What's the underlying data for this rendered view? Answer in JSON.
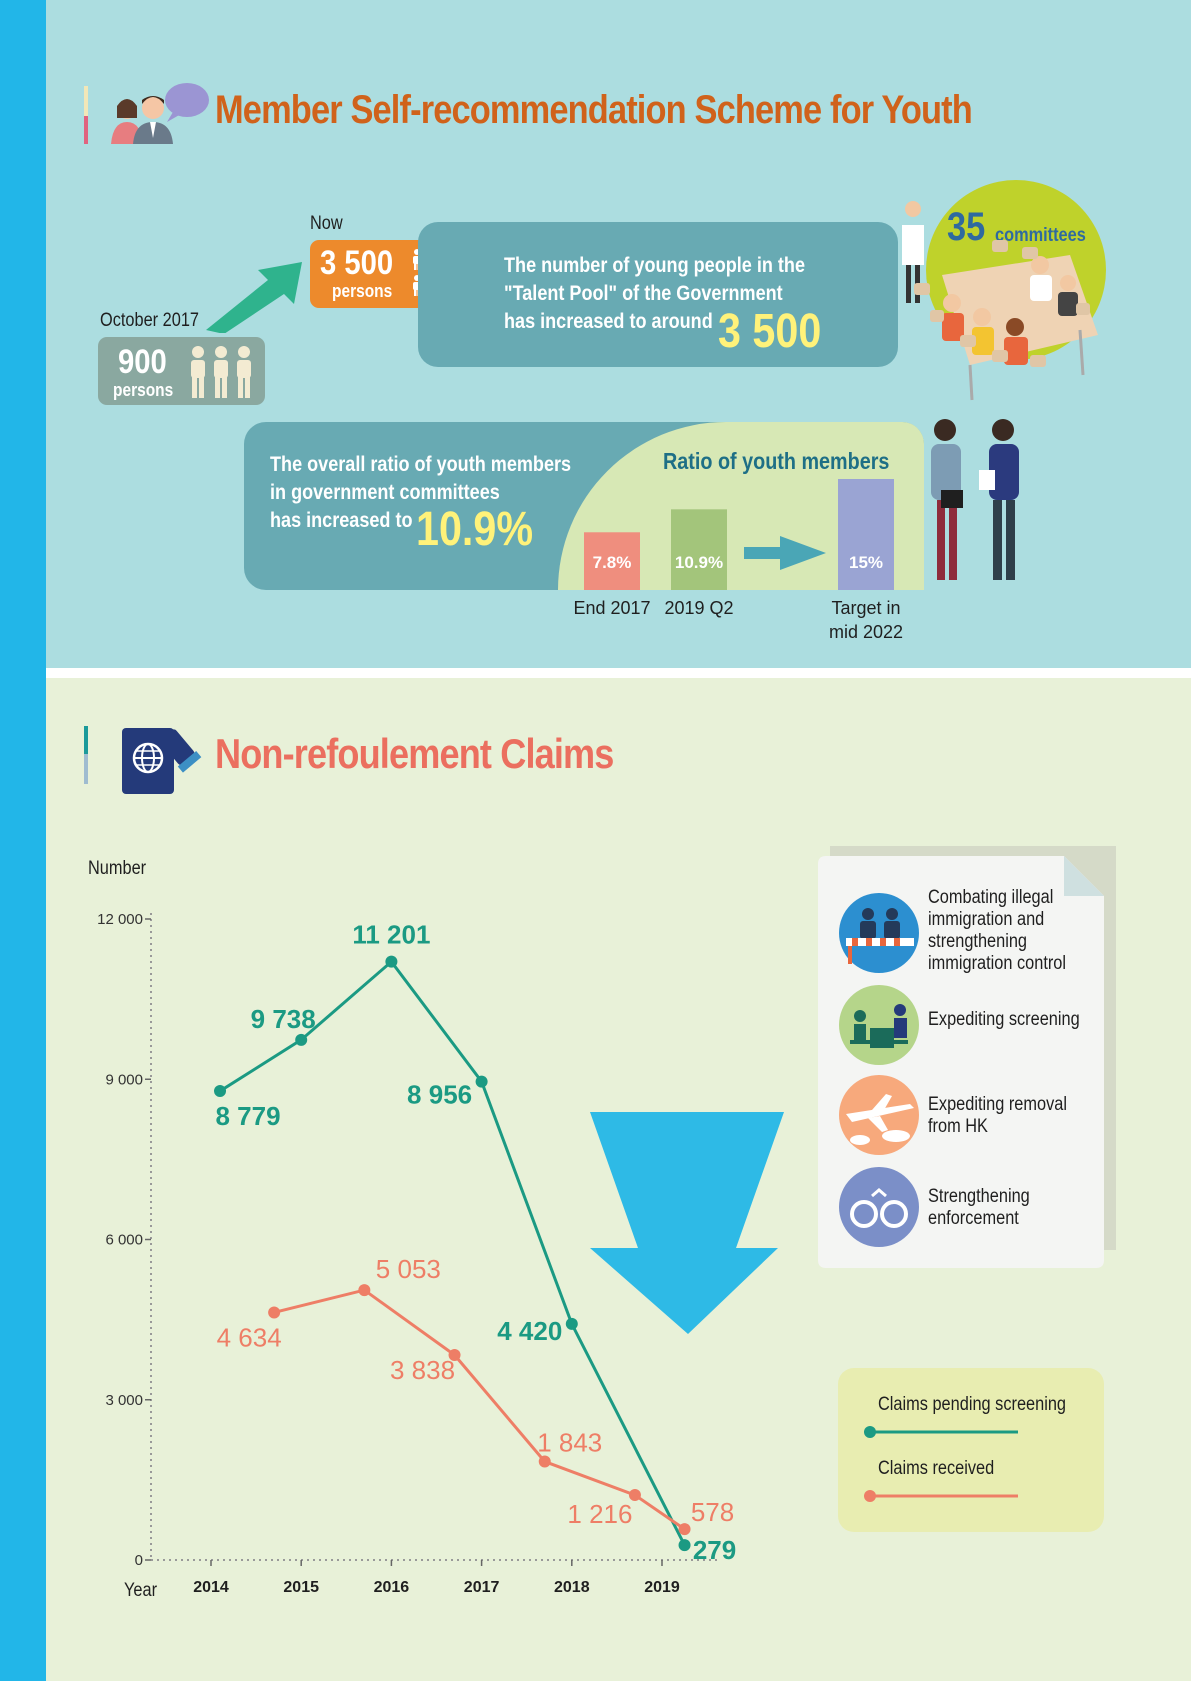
{
  "section1": {
    "title": "Member Self-recommendation Scheme for Youth",
    "now_label": "Now",
    "now_value": "3 500",
    "now_unit": "persons",
    "past_label": "October 2017",
    "past_value": "900",
    "past_unit": "persons",
    "talent_line1": "The number of young people in the",
    "talent_line2": "\"Talent Pool\" of the Government",
    "talent_line3": "has increased to around",
    "talent_value": "3 500",
    "committees_value": "35",
    "committees_label": "committees",
    "ratio_line1": "The overall ratio of youth members",
    "ratio_line2": "in government committees",
    "ratio_line3": "has increased to",
    "ratio_value": "10.9%",
    "ratio_chart_title": "Ratio of youth members"
  },
  "section2": {
    "title": "Non-refoulement Claims",
    "y_axis_title": "Number",
    "x_axis_title": "Year",
    "measures": [
      "Combating illegal immigration and strengthening immigration control",
      "Expediting screening",
      "Expediting removal from HK",
      "Strengthening enforcement"
    ],
    "legend": [
      "Claims pending screening",
      "Claims received"
    ]
  },
  "colors": {
    "pending": "#1b9a83",
    "received": "#ee7e66",
    "arrow": "#2ebae6",
    "bar_2017": "#ef8e7e",
    "bar_2019": "#a3c57b",
    "bar_target": "#9aa4d3"
  },
  "chart_data": [
    {
      "type": "bar",
      "title": "Ratio of youth members",
      "categories": [
        "End 2017",
        "2019 Q2",
        "Target in mid 2022"
      ],
      "values": [
        7.8,
        10.9,
        15
      ],
      "value_labels": [
        "7.8%",
        "10.9%",
        "15%"
      ]
    },
    {
      "type": "line",
      "xlabel": "Year",
      "ylabel": "Number",
      "ylim": [
        0,
        12000
      ],
      "y_ticks": [
        "0",
        "3 000",
        "6 000",
        "9 000",
        "12 000"
      ],
      "x_ticks": [
        "2014",
        "2015",
        "2016",
        "2017",
        "2018",
        "2019"
      ],
      "legend_position": "bottom-right",
      "series": [
        {
          "name": "Claims pending screening",
          "x": [
            2014.1,
            2015.0,
            2016.0,
            2017.0,
            2018.0,
            2019.25
          ],
          "values": [
            8779,
            9738,
            11201,
            8956,
            4420,
            279
          ],
          "labels": [
            "8 779",
            "9 738",
            "11 201",
            "8 956",
            "4 420",
            "279"
          ]
        },
        {
          "name": "Claims received",
          "x": [
            2014.7,
            2015.7,
            2016.7,
            2017.7,
            2018.7,
            2019.25
          ],
          "values": [
            4634,
            5053,
            3838,
            1843,
            1216,
            578
          ],
          "labels": [
            "4 634",
            "5 053",
            "3 838",
            "1 843",
            "1 216",
            "578"
          ]
        }
      ]
    }
  ]
}
